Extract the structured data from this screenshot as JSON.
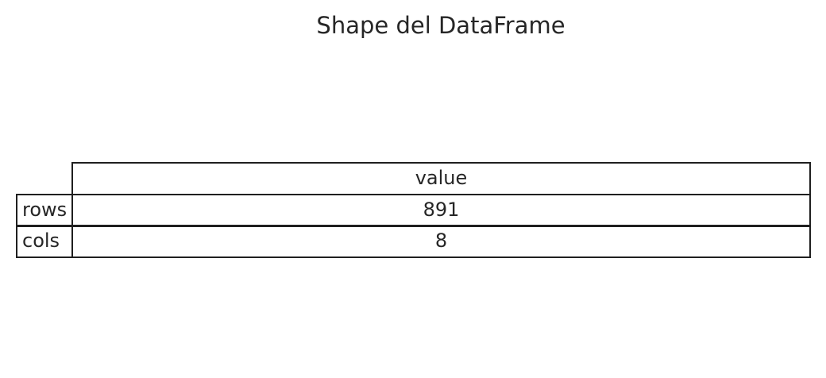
{
  "chart_data": {
    "type": "table",
    "title": "Shape del DataFrame",
    "columns": [
      "value"
    ],
    "rows": [
      {
        "label": "rows",
        "value": "891"
      },
      {
        "label": "cols",
        "value": "8"
      }
    ]
  }
}
